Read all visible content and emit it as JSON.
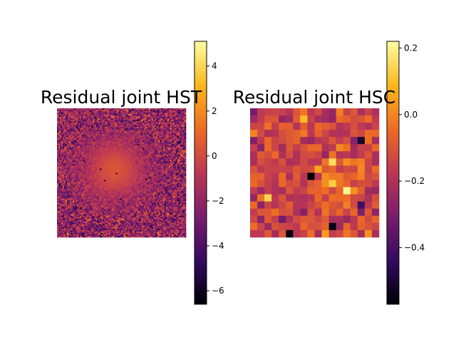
{
  "chart_data": [
    {
      "type": "heatmap",
      "title": "Residual joint HST",
      "grid_cells": [
        90,
        90
      ],
      "pattern": "fine pixel noise with a smooth bright orange core at center",
      "colormap": "inferno",
      "axes_visible": false,
      "colorbar": {
        "vmin": -6.6,
        "vmax": 5.1,
        "ticks": [
          4,
          2,
          0,
          -2,
          -4,
          -6
        ],
        "tick_labels": [
          "4",
          "2",
          "0",
          "−2",
          "−4",
          "−6"
        ]
      }
    },
    {
      "type": "heatmap",
      "title": "Residual joint HSC",
      "grid_cells": [
        18,
        18
      ],
      "pattern": "coarse pixel noise with a few dark and bright outlier pixels",
      "colormap": "inferno",
      "axes_visible": false,
      "colorbar": {
        "vmin": -0.57,
        "vmax": 0.22,
        "ticks": [
          0.2,
          0.0,
          -0.2,
          -0.4
        ],
        "tick_labels": [
          "0.2",
          "0.0",
          "−0.2",
          "−0.4"
        ]
      }
    }
  ],
  "colors": {
    "inferno_stops": [
      "#000004",
      "#320a5e",
      "#781c6d",
      "#bc3754",
      "#ed6925",
      "#fbb61a",
      "#fcffa4"
    ],
    "frame": "#000000",
    "background": "#ffffff"
  }
}
